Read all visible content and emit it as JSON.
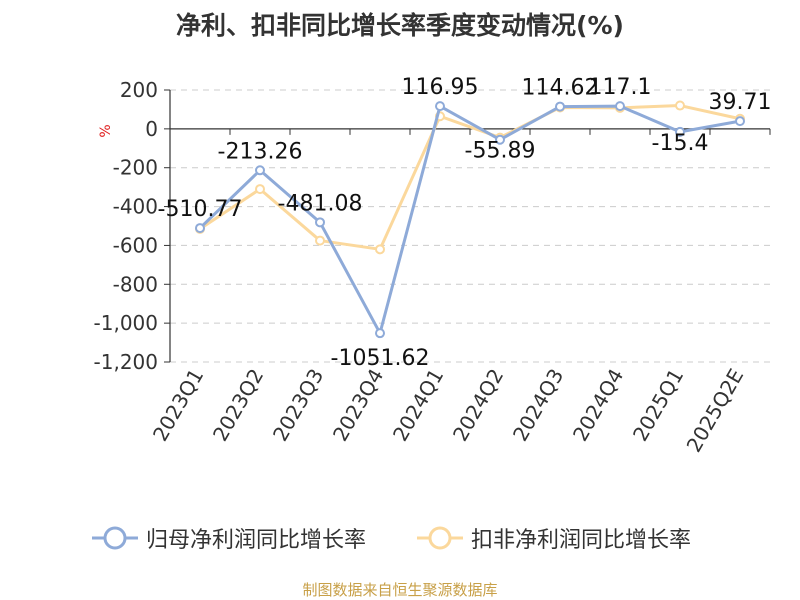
{
  "chart_data": {
    "type": "line",
    "title": "净利、扣非同比增长率季度变动情况(%)",
    "ylabel": "%",
    "xlabel": "",
    "categories": [
      "2023Q1",
      "2023Q2",
      "2023Q3",
      "2023Q4",
      "2024Q1",
      "2024Q2",
      "2024Q3",
      "2024Q4",
      "2025Q1",
      "2025Q2E"
    ],
    "ylim": [
      -1200,
      200
    ],
    "yticks": [
      200,
      0,
      -200,
      -400,
      -600,
      -800,
      -1000,
      -1200
    ],
    "ytick_labels": [
      "200",
      "0",
      "-200",
      "-400",
      "-600",
      "-800",
      "-1,000",
      "-1,200"
    ],
    "grid": true,
    "legend_position": "bottom",
    "series": [
      {
        "name": "归母净利润同比增长率",
        "color": "#8eaad8",
        "values": [
          -510.77,
          -213.26,
          -481.08,
          -1051.62,
          116.95,
          -55.89,
          114.62,
          117.1,
          -15.4,
          39.71
        ],
        "labels": [
          "-510.77",
          "-213.26",
          "-481.08",
          "-1051.62",
          "116.95",
          "-55.89",
          "114.62",
          "117.1",
          "-15.4",
          "39.71"
        ]
      },
      {
        "name": "扣非净利润同比增长率",
        "color": "#fbd89c",
        "values": [
          -515,
          -310,
          -575,
          -620,
          65,
          -45,
          110,
          108,
          120,
          52
        ]
      }
    ]
  },
  "source_text": "制图数据来自恒生聚源数据库"
}
